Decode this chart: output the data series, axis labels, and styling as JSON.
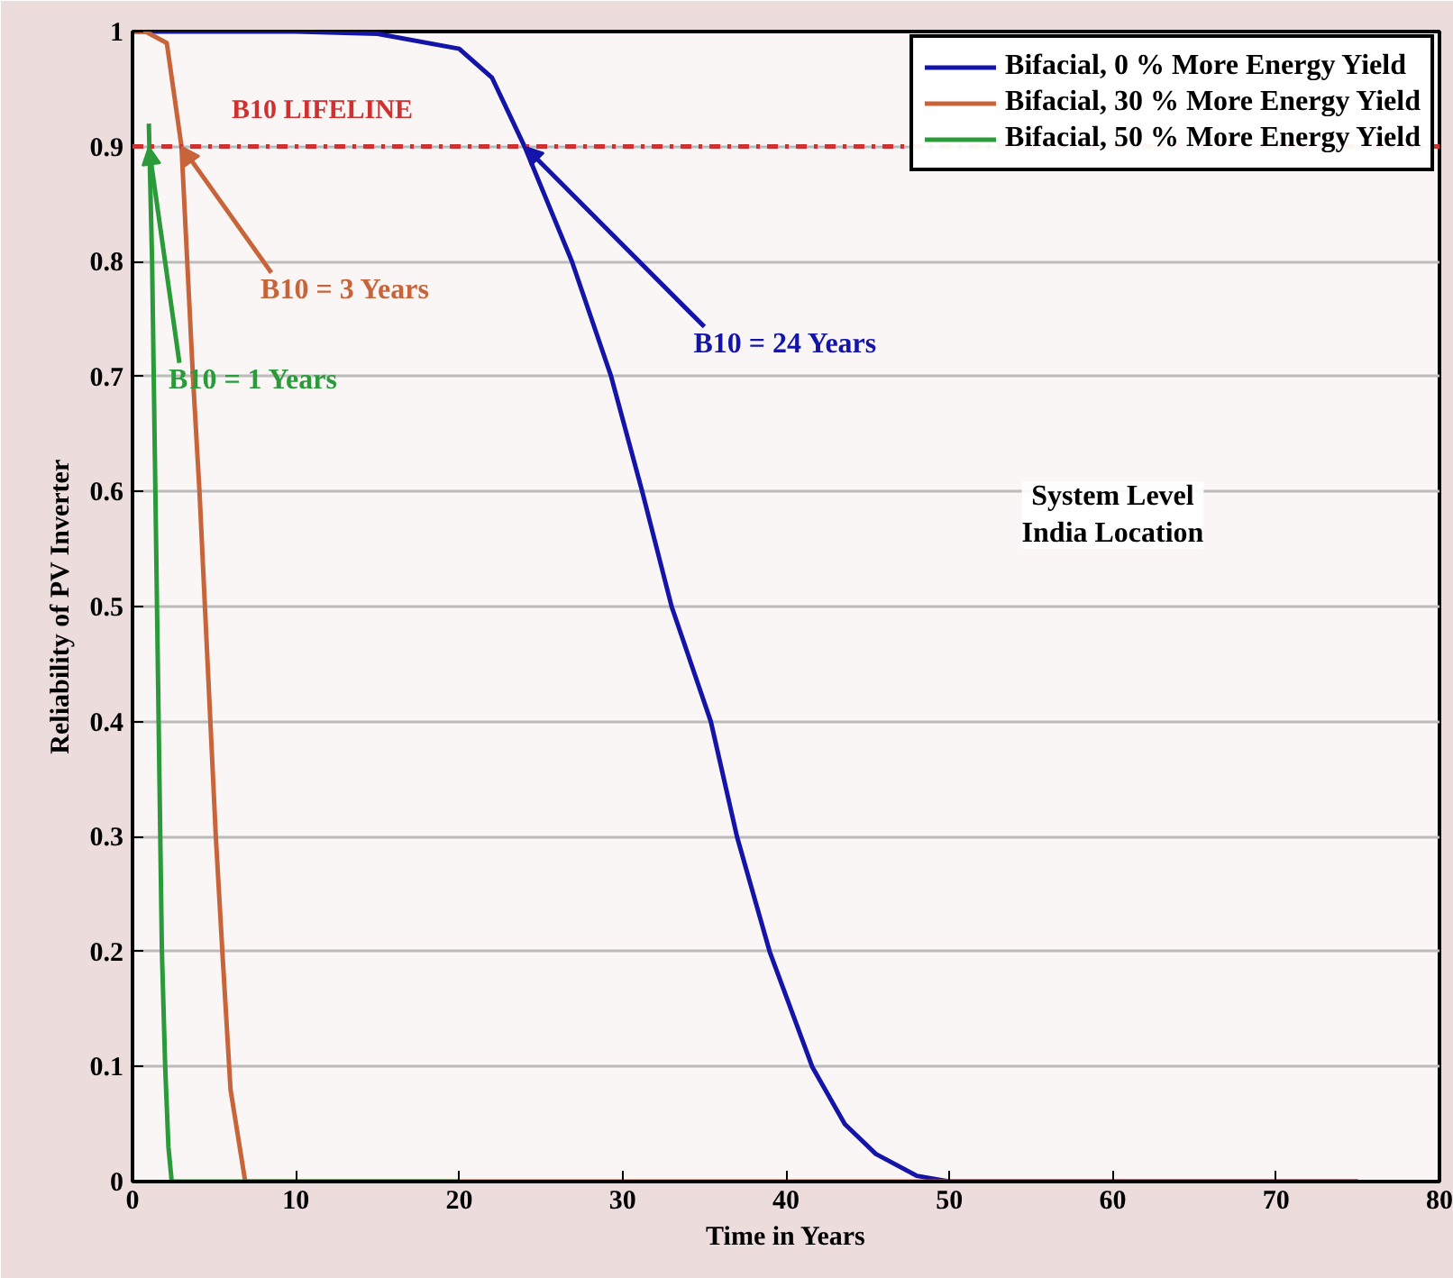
{
  "chart_data": {
    "type": "line",
    "xlabel": "Time in Years",
    "ylabel": "Reliability of PV Inverter",
    "xlim": [
      0,
      80
    ],
    "xticks": [
      0,
      10,
      20,
      30,
      40,
      50,
      60,
      70,
      80
    ],
    "ylim": [
      0,
      1
    ],
    "yticks": [
      0,
      0.1,
      0.2,
      0.3,
      0.4,
      0.5,
      0.6,
      0.7,
      0.8,
      0.9,
      1
    ],
    "grid": "y",
    "legend": "top right",
    "line_style": "solid",
    "marker": "none",
    "series": [
      {
        "name": "Bifacial, 0 % More Energy Yield",
        "color": "#1414a8",
        "x": [
          0,
          10,
          15,
          20,
          22,
          24,
          26.9,
          29.3,
          31.2,
          33,
          35.4,
          37,
          39,
          41.6,
          43.6,
          45.5,
          48,
          50,
          75
        ],
        "values": [
          1,
          1,
          0.998,
          0.985,
          0.96,
          0.9,
          0.8,
          0.7,
          0.6,
          0.5,
          0.4,
          0.3,
          0.2,
          0.1,
          0.05,
          0.024,
          0.005,
          0,
          0
        ]
      },
      {
        "name": "Bifacial, 30 % More Energy Yield",
        "color": "#c8643a",
        "x": [
          0,
          0.8,
          2.1,
          3.0,
          3.7,
          4.1,
          5.1,
          5.5,
          6.0,
          6.9,
          20,
          75
        ],
        "values": [
          1,
          1,
          0.99,
          0.9,
          0.7,
          0.6,
          0.3,
          0.2,
          0.08,
          0,
          0,
          0
        ]
      },
      {
        "name": "Bifacial, 50 % More Energy Yield",
        "color": "#2a9a3a",
        "x": [
          1.0,
          1.2,
          1.5,
          1.8,
          2.0,
          2.2,
          2.4,
          20
        ],
        "values": [
          0.92,
          0.8,
          0.5,
          0.2,
          0.1,
          0.03,
          0,
          0
        ]
      }
    ],
    "ref_lines": [
      {
        "axis": "y",
        "value": 0.9,
        "label": "B10 LIFELINE",
        "color": "#d03030",
        "line_style": "dashdot"
      }
    ],
    "annotations": [
      {
        "text": "B10 = 3 Years",
        "x": 3,
        "y": 0.9
      },
      {
        "text": "B10 = 1 Years",
        "x": 1,
        "y": 0.9
      },
      {
        "text": "B10 = 24 Years",
        "x": 24,
        "y": 0.9
      },
      "System Level\nIndia Location"
    ]
  }
}
